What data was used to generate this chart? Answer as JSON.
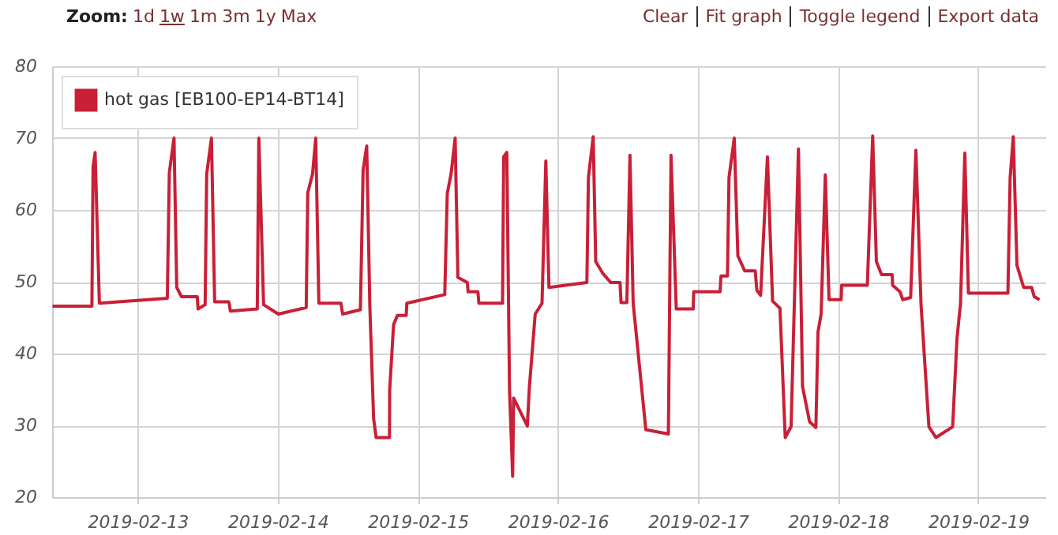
{
  "chart_data": {
    "type": "line",
    "annotations": [
      "Zoom:",
      "1d",
      "1w",
      "1m",
      "3m",
      "1y",
      "Max",
      "Clear",
      "Fit graph",
      "Toggle legend",
      "Export data"
    ],
    "x": [
      "2019-02-12T09:25",
      "2019-02-12T16:09",
      "2019-02-12T16:21",
      "2019-02-12T16:42",
      "2019-02-12T17:26",
      "2019-02-13T05:04",
      "2019-02-13T05:25",
      "2019-02-13T06:13",
      "2019-02-13T06:41",
      "2019-02-13T07:30",
      "2019-02-13T10:12",
      "2019-02-13T10:20",
      "2019-02-13T11:33",
      "2019-02-13T11:49",
      "2019-02-13T12:38",
      "2019-02-13T13:11",
      "2019-02-13T15:37",
      "2019-02-13T15:53",
      "2019-02-13T20:29",
      "2019-02-13T20:45",
      "2019-02-13T21:34",
      "2019-02-14T00:05",
      "2019-02-14T04:52",
      "2019-02-14T05:08",
      "2019-02-14T05:57",
      "2019-02-14T06:30",
      "2019-02-14T07:02",
      "2019-02-14T10:49",
      "2019-02-14T11:06",
      "2019-02-14T14:09",
      "2019-02-14T14:37",
      "2019-02-14T15:14",
      "2019-02-14T15:46",
      "2019-02-14T16:25",
      "2019-02-14T16:51",
      "2019-02-14T19:08",
      "2019-02-14T19:10",
      "2019-02-14T19:50",
      "2019-02-14T20:29",
      "2019-02-14T22:00",
      "2019-02-14T22:06",
      "2019-02-15T04:36",
      "2019-02-15T05:02",
      "2019-02-15T05:41",
      "2019-02-15T06:23",
      "2019-02-15T06:51",
      "2019-02-15T08:28",
      "2019-02-15T08:36",
      "2019-02-15T10:17",
      "2019-02-15T10:27",
      "2019-02-15T14:30",
      "2019-02-15T14:42",
      "2019-02-15T15:14",
      "2019-02-15T15:42",
      "2019-02-15T16:14",
      "2019-02-15T16:24",
      "2019-02-15T18:45",
      "2019-02-15T19:06",
      "2019-02-15T20:06",
      "2019-02-15T21:16",
      "2019-02-15T21:55",
      "2019-02-15T22:27",
      "2019-02-16T04:57",
      "2019-02-16T05:13",
      "2019-02-16T06:02",
      "2019-02-16T06:28",
      "2019-02-16T07:39",
      "2019-02-16T09:01",
      "2019-02-16T10:38",
      "2019-02-16T10:48",
      "2019-02-16T11:48",
      "2019-02-16T12:20",
      "2019-02-16T12:53",
      "2019-02-16T15:03",
      "2019-02-16T18:55",
      "2019-02-16T19:22",
      "2019-02-16T20:16",
      "2019-02-16T23:10",
      "2019-02-16T23:15",
      "2019-02-17T03:46",
      "2019-02-17T03:56",
      "2019-02-17T05:02",
      "2019-02-17T05:18",
      "2019-02-17T06:12",
      "2019-02-17T06:49",
      "2019-02-17T08:00",
      "2019-02-17T09:48",
      "2019-02-17T10:04",
      "2019-02-17T10:43",
      "2019-02-17T11:53",
      "2019-02-17T12:46",
      "2019-02-17T14:02",
      "2019-02-17T14:56",
      "2019-02-17T15:56",
      "2019-02-17T17:12",
      "2019-02-17T17:54",
      "2019-02-17T19:06",
      "2019-02-17T20:11",
      "2019-02-17T20:33",
      "2019-02-17T21:05",
      "2019-02-17T21:48",
      "2019-02-17T22:26",
      "2019-02-18T00:31",
      "2019-02-18T00:36",
      "2019-02-18T05:00",
      "2019-02-18T05:55",
      "2019-02-18T06:33",
      "2019-02-18T07:26",
      "2019-02-18T09:15",
      "2019-02-18T09:20",
      "2019-02-18T10:36",
      "2019-02-18T11:04",
      "2019-02-18T12:25",
      "2019-02-18T13:19",
      "2019-02-18T14:12",
      "2019-02-18T15:33",
      "2019-02-18T16:45",
      "2019-02-18T19:37",
      "2019-02-18T20:21",
      "2019-02-18T20:58",
      "2019-02-18T21:42",
      "2019-02-18T22:19",
      "2019-02-19T05:05",
      "2019-02-19T05:28",
      "2019-02-19T06:00",
      "2019-02-19T06:38",
      "2019-02-19T07:47",
      "2019-02-19T09:09",
      "2019-02-19T09:36",
      "2019-02-19T10:30"
    ],
    "series": [
      {
        "name": "hot gas [EB100-EP14-BT14]",
        "color": "#c91f37",
        "values": [
          46.6,
          46.6,
          66,
          68,
          47,
          47.7,
          65.2,
          70,
          49.2,
          47.9,
          47.9,
          46.2,
          46.8,
          65,
          70,
          47.2,
          47.2,
          45.9,
          46.2,
          70,
          46.8,
          45.5,
          46.4,
          62.4,
          65,
          70,
          47,
          47,
          45.5,
          46.1,
          65.6,
          68.9,
          46.6,
          30.9,
          28.3,
          28.3,
          34.9,
          44,
          45.3,
          45.3,
          47,
          48.2,
          62.3,
          65,
          70,
          50.6,
          49.9,
          48.6,
          48.6,
          47,
          47,
          67.4,
          68,
          34.9,
          22.9,
          33.8,
          29.9,
          35.3,
          45.5,
          47,
          66.8,
          49.2,
          49.9,
          64.5,
          70.2,
          52.8,
          51.2,
          49.9,
          49.9,
          47.1,
          47.1,
          67.6,
          47,
          29.4,
          28.8,
          67.6,
          46.2,
          46.2,
          48.6,
          48.6,
          50.8,
          50.8,
          64.5,
          70,
          53.6,
          51.5,
          51.5,
          48.8,
          48.1,
          67.4,
          47.3,
          46.3,
          28.3,
          29.8,
          68.5,
          35.4,
          30.5,
          29.7,
          43,
          45.5,
          64.9,
          47.5,
          47.5,
          49.5,
          49.5,
          70.3,
          52.8,
          51,
          51,
          49.5,
          48.6,
          47.5,
          47.8,
          68.3,
          46.8,
          29.8,
          28.3,
          29.8,
          42,
          47,
          67.9,
          48.4,
          48.4,
          64.5,
          70.2,
          52.3,
          49.2,
          49.2,
          47.9,
          47.5
        ]
      }
    ],
    "xlim": [
      "2019-02-12T09:20",
      "2019-02-19T11:30"
    ],
    "xticks": [
      "2019-02-13",
      "2019-02-14",
      "2019-02-15",
      "2019-02-16",
      "2019-02-17",
      "2019-02-18",
      "2019-02-19"
    ],
    "ylim": [
      20,
      80
    ],
    "yticks": [
      20,
      30,
      40,
      50,
      60,
      70,
      80
    ],
    "grid": true,
    "legend": "top left",
    "marker": "none",
    "line_style": "solid"
  }
}
